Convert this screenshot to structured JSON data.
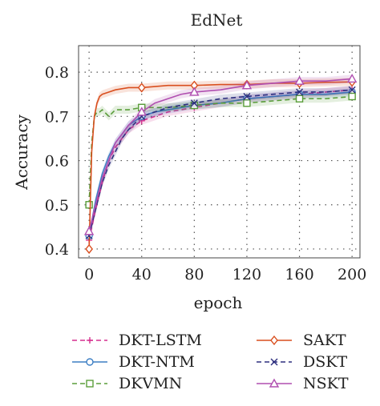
{
  "chart_data": {
    "type": "line",
    "title": "EdNet",
    "xlabel": "epoch",
    "ylabel": "Accuracy",
    "xlim": [
      -8,
      206
    ],
    "ylim": [
      0.38,
      0.86
    ],
    "xticks": [
      0,
      40,
      80,
      120,
      160,
      200
    ],
    "yticks": [
      0.4,
      0.5,
      0.6,
      0.7,
      0.8
    ],
    "xtick_labels": [
      "0",
      "40",
      "80",
      "120",
      "160",
      "200"
    ],
    "ytick_labels": [
      "0.4",
      "0.5",
      "0.6",
      "0.7",
      "0.8"
    ],
    "grid": true,
    "legend_position": "bottom",
    "series": [
      {
        "name": "DKT-LSTM",
        "color": "#d62f8f",
        "dash": "6,4",
        "marker": "plus",
        "x": [
          0,
          5,
          10,
          15,
          20,
          25,
          30,
          40,
          50,
          60,
          80,
          100,
          120,
          140,
          160,
          180,
          200
        ],
        "y": [
          0.42,
          0.49,
          0.55,
          0.6,
          0.63,
          0.65,
          0.67,
          0.69,
          0.7,
          0.71,
          0.72,
          0.73,
          0.74,
          0.745,
          0.75,
          0.755,
          0.76
        ]
      },
      {
        "name": "DKT-NTM",
        "color": "#3d7fc4",
        "dash": "",
        "marker": "circle",
        "x": [
          0,
          5,
          10,
          15,
          20,
          25,
          30,
          40,
          50,
          60,
          80,
          100,
          120,
          140,
          160,
          180,
          200
        ],
        "y": [
          0.43,
          0.51,
          0.57,
          0.61,
          0.64,
          0.66,
          0.68,
          0.7,
          0.71,
          0.715,
          0.725,
          0.73,
          0.74,
          0.745,
          0.75,
          0.75,
          0.755
        ]
      },
      {
        "name": "DKVMN",
        "color": "#5a9e3a",
        "dash": "6,4",
        "marker": "square",
        "x": [
          0,
          2,
          4,
          6,
          8,
          10,
          15,
          20,
          30,
          40,
          60,
          80,
          100,
          120,
          140,
          160,
          180,
          200
        ],
        "y": [
          0.5,
          0.64,
          0.7,
          0.71,
          0.71,
          0.715,
          0.7,
          0.715,
          0.715,
          0.72,
          0.72,
          0.725,
          0.73,
          0.73,
          0.735,
          0.74,
          0.74,
          0.745
        ]
      },
      {
        "name": "SAKT",
        "color": "#d94f1f",
        "dash": "",
        "marker": "diamond",
        "x": [
          0,
          2,
          4,
          6,
          8,
          10,
          15,
          20,
          30,
          40,
          60,
          80,
          100,
          120,
          140,
          160,
          180,
          200
        ],
        "y": [
          0.4,
          0.62,
          0.7,
          0.73,
          0.745,
          0.75,
          0.755,
          0.76,
          0.765,
          0.765,
          0.77,
          0.77,
          0.772,
          0.772,
          0.775,
          0.775,
          0.777,
          0.778
        ]
      },
      {
        "name": "DSKT",
        "color": "#2d2f7f",
        "dash": "6,4",
        "marker": "x",
        "x": [
          0,
          5,
          10,
          15,
          20,
          25,
          30,
          40,
          50,
          60,
          80,
          100,
          120,
          140,
          160,
          180,
          200
        ],
        "y": [
          0.43,
          0.49,
          0.55,
          0.59,
          0.62,
          0.65,
          0.67,
          0.7,
          0.71,
          0.72,
          0.73,
          0.74,
          0.745,
          0.75,
          0.755,
          0.755,
          0.76
        ]
      },
      {
        "name": "NSKT",
        "color": "#b04fb0",
        "dash": "",
        "marker": "triangle",
        "x": [
          0,
          5,
          10,
          15,
          20,
          25,
          30,
          40,
          50,
          60,
          70,
          80,
          100,
          120,
          140,
          160,
          180,
          200
        ],
        "y": [
          0.44,
          0.5,
          0.56,
          0.6,
          0.64,
          0.66,
          0.68,
          0.71,
          0.73,
          0.74,
          0.75,
          0.755,
          0.76,
          0.77,
          0.775,
          0.78,
          0.78,
          0.785
        ]
      }
    ]
  }
}
